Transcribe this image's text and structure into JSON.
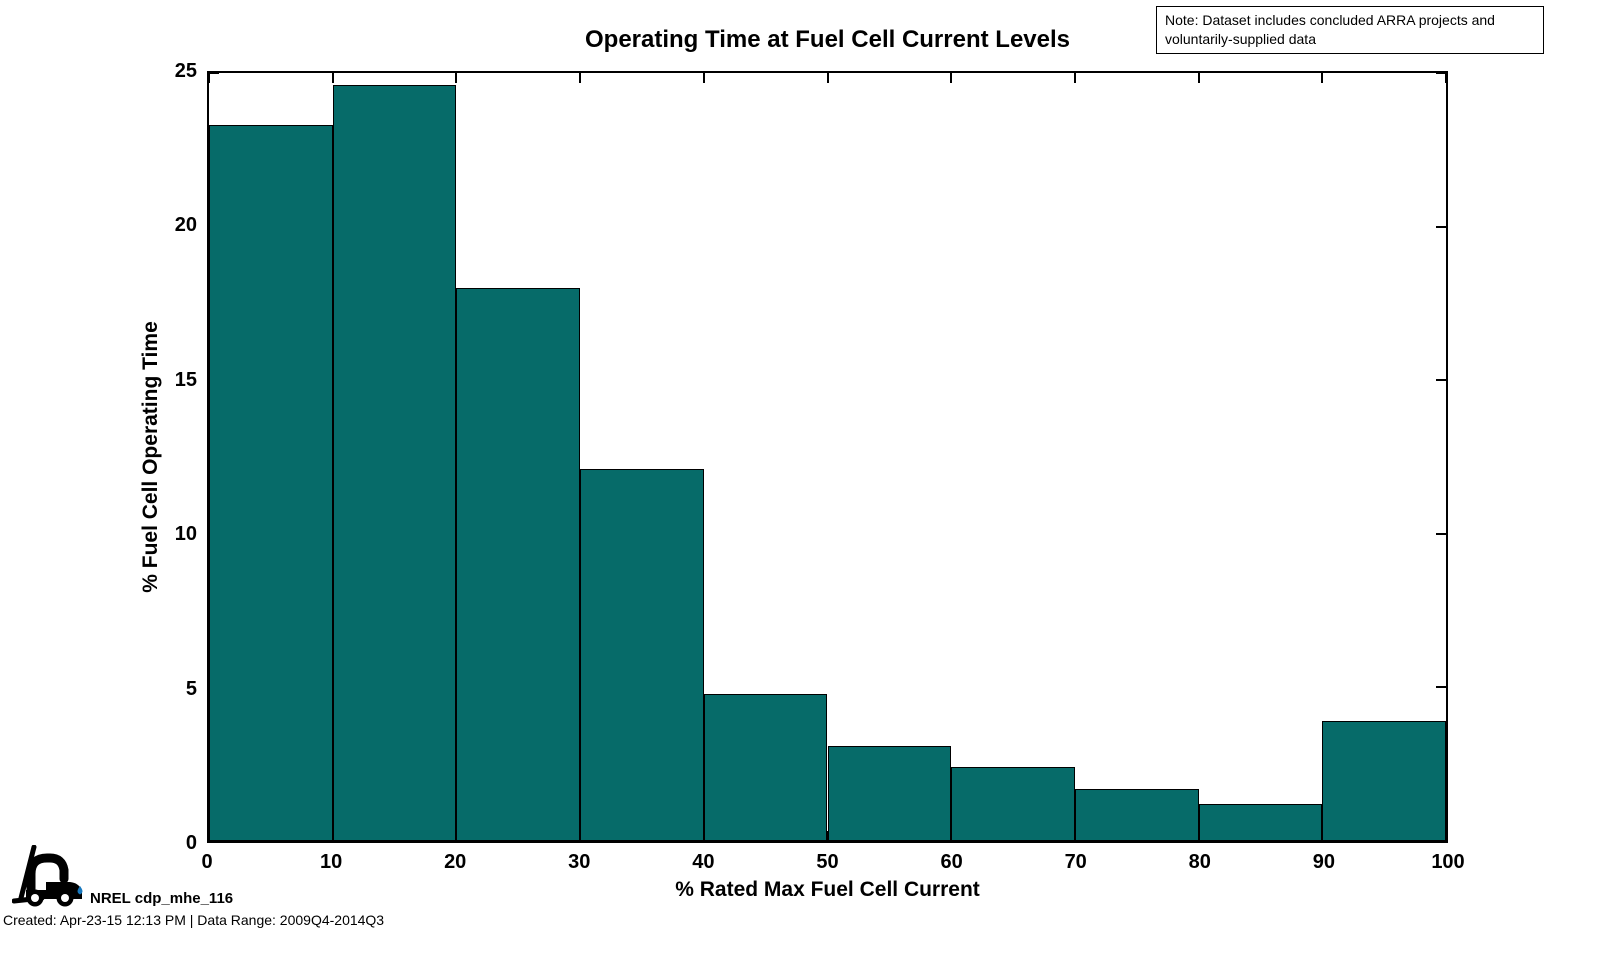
{
  "note_box": {
    "text": "Note: Dataset includes concluded ARRA projects and voluntarily-supplied data"
  },
  "footer": {
    "logo_label": "NREL cdp_mhe_116",
    "created_line": "Created: Apr-23-15 12:13 PM | Data Range: 2009Q4-2014Q3",
    "droplet_color": "#1878be"
  },
  "chart_data": {
    "type": "bar",
    "subtype": "histogram",
    "title": "Operating Time at Fuel Cell Current Levels",
    "xlabel": "% Rated Max Fuel Cell Current",
    "ylabel": "% Fuel Cell Operating Time",
    "xlim": [
      0,
      100
    ],
    "ylim": [
      0,
      25
    ],
    "x_ticks": [
      0,
      10,
      20,
      30,
      40,
      50,
      60,
      70,
      80,
      90,
      100
    ],
    "y_ticks": [
      0,
      5,
      10,
      15,
      20,
      25
    ],
    "bin_edges": [
      0,
      10,
      20,
      30,
      40,
      50,
      60,
      70,
      80,
      90,
      100
    ],
    "values": [
      23.3,
      24.6,
      18.0,
      12.1,
      4.8,
      3.1,
      2.4,
      1.7,
      1.2,
      3.9
    ],
    "bar_color": "#066b69",
    "bar_edge_color": "#000000",
    "grid": false,
    "legend": null,
    "plot_background": "#ffffff"
  }
}
